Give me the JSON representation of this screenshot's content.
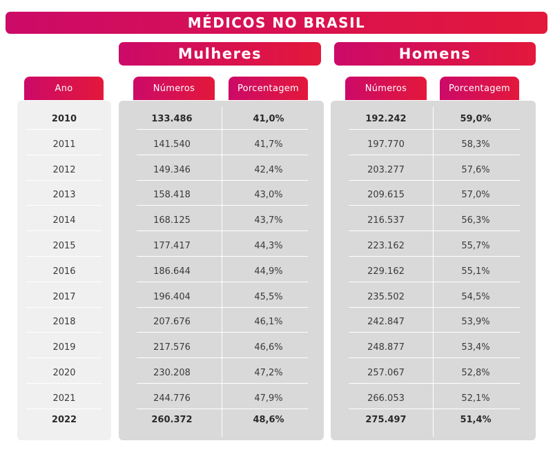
{
  "title": "MÉDICOS NO BRASIL",
  "groups": {
    "women": "Mulheres",
    "men": "Homens"
  },
  "columns": {
    "year": "Ano",
    "women_numbers": "Números",
    "women_percent": "Porcentagem",
    "men_numbers": "Números",
    "men_percent": "Porcentagem"
  },
  "colors": {
    "accent_start": "#cc0a68",
    "accent_end": "#e3183b"
  },
  "rows": [
    {
      "year": "2010",
      "women_numbers": "133.486",
      "women_percent": "41,0%",
      "men_numbers": "192.242",
      "men_percent": "59,0%",
      "bold": true
    },
    {
      "year": "2011",
      "women_numbers": "141.540",
      "women_percent": "41,7%",
      "men_numbers": "197.770",
      "men_percent": "58,3%",
      "bold": false
    },
    {
      "year": "2012",
      "women_numbers": "149.346",
      "women_percent": "42,4%",
      "men_numbers": "203.277",
      "men_percent": "57,6%",
      "bold": false
    },
    {
      "year": "2013",
      "women_numbers": "158.418",
      "women_percent": "43,0%",
      "men_numbers": "209.615",
      "men_percent": "57,0%",
      "bold": false
    },
    {
      "year": "2014",
      "women_numbers": "168.125",
      "women_percent": "43,7%",
      "men_numbers": "216.537",
      "men_percent": "56,3%",
      "bold": false
    },
    {
      "year": "2015",
      "women_numbers": "177.417",
      "women_percent": "44,3%",
      "men_numbers": "223.162",
      "men_percent": "55,7%",
      "bold": false
    },
    {
      "year": "2016",
      "women_numbers": "186.644",
      "women_percent": "44,9%",
      "men_numbers": "229.162",
      "men_percent": "55,1%",
      "bold": false
    },
    {
      "year": "2017",
      "women_numbers": "196.404",
      "women_percent": "45,5%",
      "men_numbers": "235.502",
      "men_percent": "54,5%",
      "bold": false
    },
    {
      "year": "2018",
      "women_numbers": "207.676",
      "women_percent": "46,1%",
      "men_numbers": "242.847",
      "men_percent": "53,9%",
      "bold": false
    },
    {
      "year": "2019",
      "women_numbers": "217.576",
      "women_percent": "46,6%",
      "men_numbers": "248.877",
      "men_percent": "53,4%",
      "bold": false
    },
    {
      "year": "2020",
      "women_numbers": "230.208",
      "women_percent": "47,2%",
      "men_numbers": "257.067",
      "men_percent": "52,8%",
      "bold": false
    },
    {
      "year": "2021",
      "women_numbers": "244.776",
      "women_percent": "47,9%",
      "men_numbers": "266.053",
      "men_percent": "52,1%",
      "bold": false
    },
    {
      "year": "2022",
      "women_numbers": "260.372",
      "women_percent": "48,6%",
      "men_numbers": "275.497",
      "men_percent": "51,4%",
      "bold": true
    }
  ]
}
